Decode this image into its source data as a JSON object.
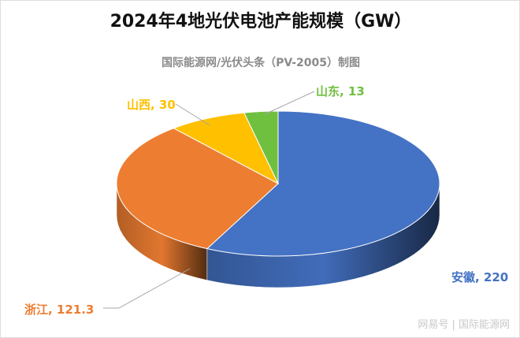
{
  "chart_data": {
    "type": "pie",
    "style": "3d",
    "title": "2024年4地光伏电池产能规模（GW）",
    "subtitle": "国际能源网/光伏头条（PV-2005）制图",
    "start": "top",
    "direction": "clockwise",
    "slices": [
      {
        "label": "安徽",
        "value": 220,
        "display": "安徽, 220",
        "color": "#4472C4"
      },
      {
        "label": "浙江",
        "value": 121.3,
        "display": "浙江, 121.3",
        "color": "#ED7D31"
      },
      {
        "label": "山西",
        "value": 30,
        "display": "山西, 30",
        "color": "#FFC000"
      },
      {
        "label": "山东",
        "value": 13,
        "display": "山东, 13",
        "color": "#70C040"
      }
    ]
  },
  "watermark": "网易号 | 国际能源网"
}
